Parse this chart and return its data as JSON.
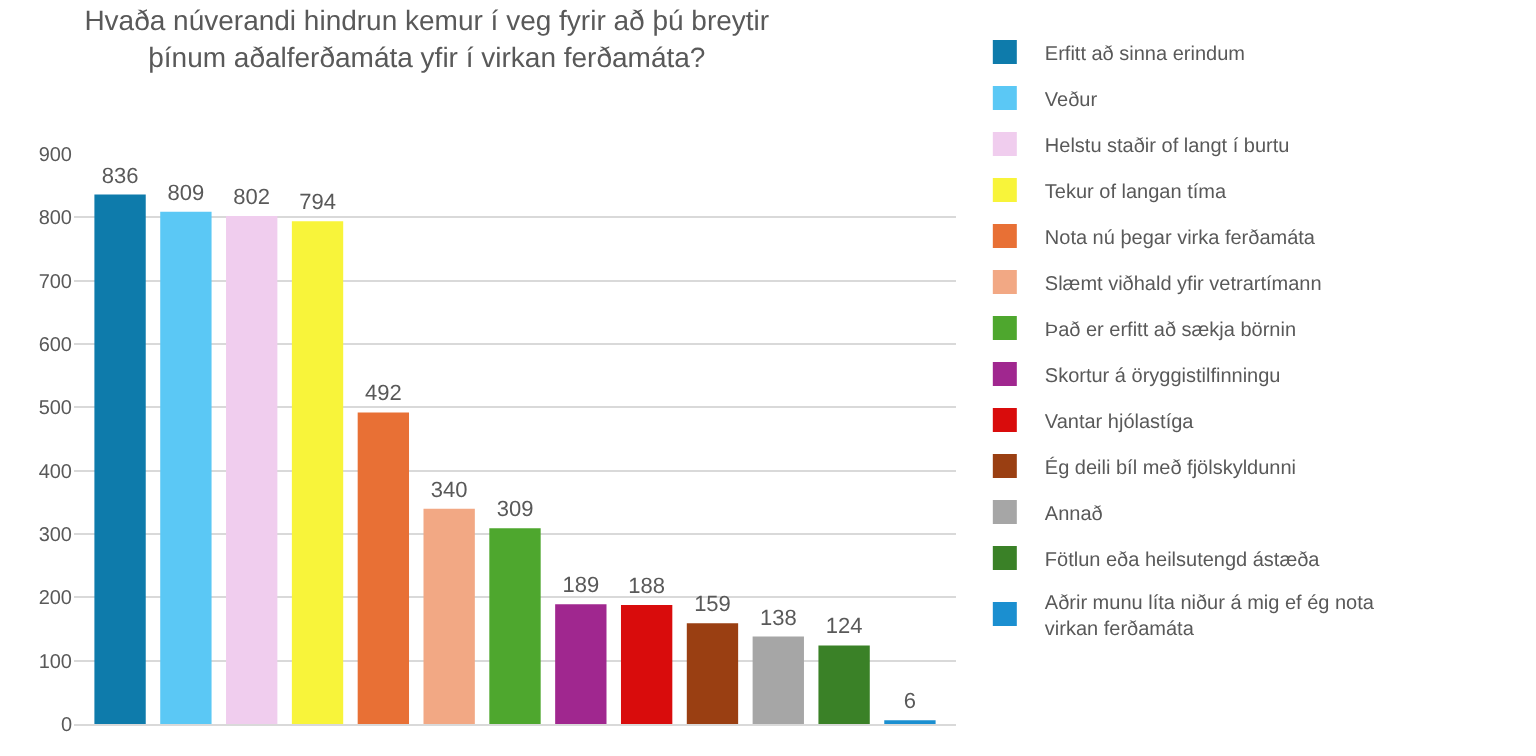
{
  "chart_data": {
    "type": "bar",
    "title": "Hvaða núverandi hindrun kemur í veg fyrir að þú breytir þínum aðalferðamáta yfir í virkan ferðamáta?",
    "categories": [
      null,
      null,
      null,
      null,
      null,
      null,
      null,
      null,
      null,
      null,
      null,
      null,
      null
    ],
    "series": [
      {
        "name": "Erfitt að sinna erindum",
        "color": "#0e7bab",
        "values": [
          836,
          null,
          null,
          null,
          null,
          null,
          null,
          null,
          null,
          null,
          null,
          null,
          null
        ]
      },
      {
        "name": "Veður",
        "color": "#5bc8f5",
        "values": [
          null,
          809,
          null,
          null,
          null,
          null,
          null,
          null,
          null,
          null,
          null,
          null,
          null
        ]
      },
      {
        "name": "Helstu staðir of langt í burtu",
        "color": "#f0cdee",
        "values": [
          null,
          null,
          802,
          null,
          null,
          null,
          null,
          null,
          null,
          null,
          null,
          null,
          null
        ]
      },
      {
        "name": "Tekur of langan tíma",
        "color": "#f8f43a",
        "values": [
          null,
          null,
          null,
          794,
          null,
          null,
          null,
          null,
          null,
          null,
          null,
          null,
          null
        ]
      },
      {
        "name": "Nota nú þegar virka ferðamáta",
        "color": "#e87035",
        "values": [
          null,
          null,
          null,
          null,
          492,
          null,
          null,
          null,
          null,
          null,
          null,
          null,
          null
        ]
      },
      {
        "name": "Slæmt viðhald yfir vetrartímann",
        "color": "#f2a884",
        "values": [
          null,
          null,
          null,
          null,
          null,
          340,
          null,
          null,
          null,
          null,
          null,
          null,
          null
        ]
      },
      {
        "name": "Það er erfitt að sækja börnin",
        "color": "#4ea72e",
        "values": [
          null,
          null,
          null,
          null,
          null,
          null,
          309,
          null,
          null,
          null,
          null,
          null,
          null
        ]
      },
      {
        "name": "Skortur á öryggistilfinningu",
        "color": "#a0278f",
        "values": [
          null,
          null,
          null,
          null,
          null,
          null,
          null,
          189,
          null,
          null,
          null,
          null,
          null
        ]
      },
      {
        "name": "Vantar hjólastíga",
        "color": "#d90c0c",
        "values": [
          null,
          null,
          null,
          null,
          null,
          null,
          null,
          null,
          188,
          null,
          null,
          null,
          null
        ]
      },
      {
        "name": "Ég deili bíl með fjölskyldunni",
        "color": "#9a3f12",
        "values": [
          null,
          null,
          null,
          null,
          null,
          null,
          null,
          null,
          null,
          159,
          null,
          null,
          null
        ]
      },
      {
        "name": "Annað",
        "color": "#a6a6a6",
        "values": [
          null,
          null,
          null,
          null,
          null,
          null,
          null,
          null,
          null,
          null,
          138,
          null,
          null
        ]
      },
      {
        "name": "Fötlun eða heilsutengd ástæða",
        "color": "#3a8127",
        "values": [
          null,
          null,
          null,
          null,
          null,
          null,
          null,
          null,
          null,
          null,
          null,
          124,
          null
        ]
      },
      {
        "name": "Aðrir munu líta niður á mig ef ég nota virkan ferðamáta",
        "color": "#1b8fd0",
        "values": [
          null,
          null,
          null,
          null,
          null,
          null,
          null,
          null,
          null,
          null,
          null,
          null,
          6
        ]
      }
    ],
    "ylim": [
      0,
      900
    ],
    "yticks": [
      0,
      100,
      200,
      300,
      400,
      500,
      600,
      700,
      800,
      900
    ],
    "grid": "y",
    "legend": "right",
    "data_labels": true
  }
}
